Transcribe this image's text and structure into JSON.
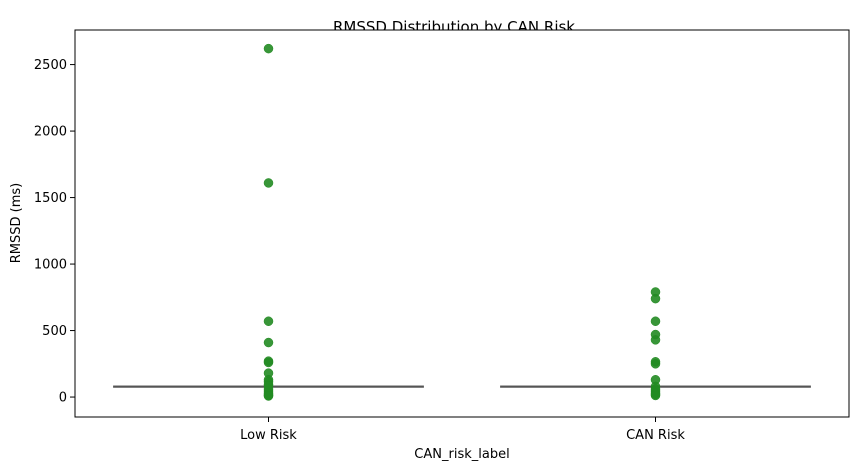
{
  "chart_data": {
    "type": "box",
    "title": "RMSSD Distribution by CAN Risk",
    "xlabel": "CAN_risk_label",
    "ylabel": "RMSSD (ms)",
    "categories": [
      "Low Risk",
      "CAN Risk"
    ],
    "ylim": [
      -150,
      2760
    ],
    "yticks": [
      0,
      500,
      1000,
      1500,
      2000,
      2500
    ],
    "ytick_labels": [
      "0",
      "500",
      "1000",
      "1500",
      "2000",
      "2500"
    ],
    "grid": false,
    "legend": "none",
    "box_color": "#555555",
    "point_color": "#228B22",
    "groups": [
      {
        "category": "Low Risk",
        "median": 78,
        "box_low": 75,
        "box_high": 82,
        "outliers": [
          2620,
          1610,
          570,
          410,
          270,
          260,
          180,
          130,
          115,
          95,
          85,
          60,
          45,
          30,
          20,
          12,
          8
        ]
      },
      {
        "category": "CAN Risk",
        "median": 78,
        "box_low": 75,
        "box_high": 82,
        "outliers": [
          790,
          740,
          570,
          470,
          430,
          265,
          250,
          130,
          80,
          60,
          45,
          30,
          20,
          12
        ]
      }
    ]
  }
}
